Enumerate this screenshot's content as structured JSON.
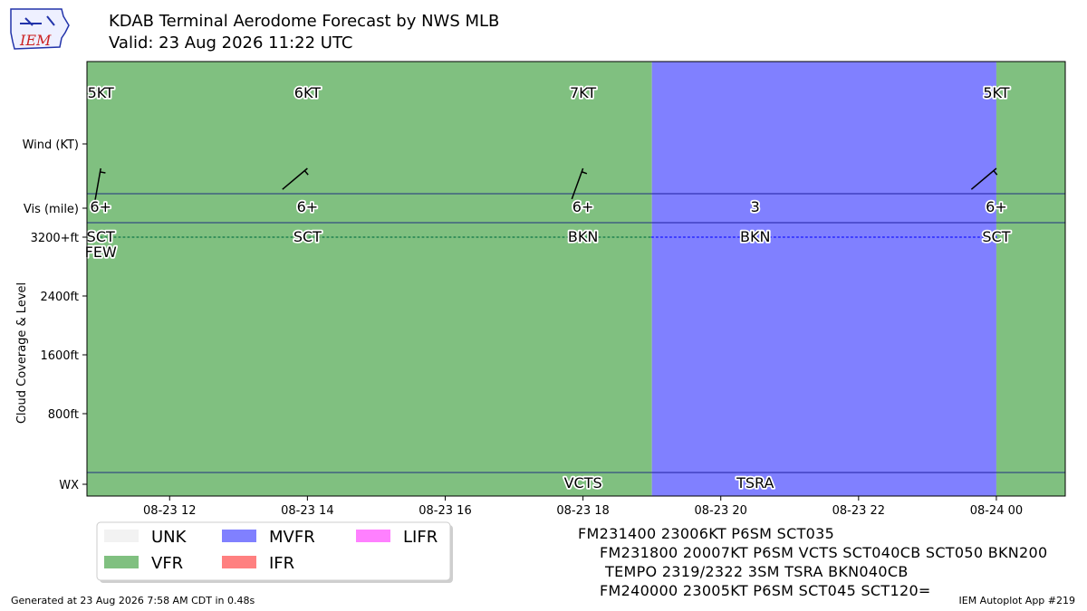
{
  "header": {
    "title_line1": "KDAB Terminal Aerodome Forecast by NWS MLB",
    "title_line2": "Valid: 23 Aug 2026 11:22 UTC",
    "logo_text": "IEM"
  },
  "footer": {
    "generated": "Generated at 23 Aug 2026 7:58 AM CDT in 0.48s",
    "app": "IEM Autoplot App #219"
  },
  "taf_text": [
    "FM231400 23006KT P6SM SCT035",
    "FM231800 20007KT P6SM VCTS SCT040CB SCT050 BKN200",
    "TEMPO 2319/2322 3SM TSRA BKN040CB",
    "FM240000 23005KT P6SM SCT045 SCT120="
  ],
  "colors": {
    "UNK": "#f2f2f2",
    "VFR": "#80c080",
    "MVFR": "#8080ff",
    "IFR": "#ff8080",
    "LIFR": "#ff80ff",
    "vfr_line": "#2e8b57",
    "mvfr_line": "#3333ff",
    "row_divider": "#000080"
  },
  "chart_data": {
    "type": "timeline",
    "x_axis": {
      "range": [
        "2026-08-23 10:48",
        "2026-08-24 01:00"
      ],
      "tick_labels": [
        {
          "t": "2026-08-23 12:00",
          "label": "08-23 12"
        },
        {
          "t": "2026-08-23 14:00",
          "label": "08-23 14"
        },
        {
          "t": "2026-08-23 16:00",
          "label": "08-23 16"
        },
        {
          "t": "2026-08-23 18:00",
          "label": "08-23 18"
        },
        {
          "t": "2026-08-23 20:00",
          "label": "08-23 20"
        },
        {
          "t": "2026-08-23 22:00",
          "label": "08-23 22"
        },
        {
          "t": "2026-08-24 00:00",
          "label": "08-24 00"
        }
      ]
    },
    "y_axis": {
      "label": "Cloud Coverage & Level",
      "row_labels": {
        "wind": "Wind (KT)",
        "vis": "Vis (mile)",
        "wx": "WX"
      },
      "level_ticks": [
        {
          "ft": 800,
          "label": "800ft"
        },
        {
          "ft": 1600,
          "label": "1600ft"
        },
        {
          "ft": 2400,
          "label": "2400ft"
        },
        {
          "ft": 3200,
          "label": "3200+ft"
        }
      ]
    },
    "category_periods": [
      {
        "start": "2026-08-23 10:48",
        "end": "2026-08-23 19:00",
        "category": "VFR"
      },
      {
        "start": "2026-08-23 19:00",
        "end": "2026-08-24 00:00",
        "category": "MVFR"
      },
      {
        "start": "2026-08-24 00:00",
        "end": "2026-08-24 01:00",
        "category": "VFR"
      }
    ],
    "forecasts": [
      {
        "t": "2026-08-23 11:00",
        "wind_dir": 190,
        "wind_kt": 5,
        "wind_label": "5KT",
        "vis": "6+",
        "clouds": [
          {
            "cover": "SCT",
            "level": 3200
          },
          {
            "cover": "FEW",
            "level": 3200
          }
        ],
        "wx": ""
      },
      {
        "t": "2026-08-23 14:00",
        "wind_dir": 230,
        "wind_kt": 6,
        "wind_label": "6KT",
        "vis": "6+",
        "clouds": [
          {
            "cover": "SCT",
            "level": 3200
          }
        ],
        "wx": ""
      },
      {
        "t": "2026-08-23 18:00",
        "wind_dir": 200,
        "wind_kt": 7,
        "wind_label": "7KT",
        "vis": "6+",
        "clouds": [
          {
            "cover": "BKN",
            "level": 3200
          }
        ],
        "wx": "VCTS"
      },
      {
        "t": "2026-08-23 20:30",
        "wind_dir": null,
        "wind_kt": null,
        "wind_label": "",
        "vis": "3",
        "clouds": [
          {
            "cover": "BKN",
            "level": 3200
          }
        ],
        "wx": "TSRA"
      },
      {
        "t": "2026-08-24 00:00",
        "wind_dir": 230,
        "wind_kt": 5,
        "wind_label": "5KT",
        "vis": "6+",
        "clouds": [
          {
            "cover": "SCT",
            "level": 3200
          }
        ],
        "wx": ""
      }
    ],
    "cloud_level_lines": [
      {
        "start": "2026-08-23 11:00",
        "end": "2026-08-23 19:00",
        "level": 3200,
        "category": "VFR"
      },
      {
        "start": "2026-08-23 19:00",
        "end": "2026-08-24 00:00",
        "level": 3200,
        "category": "MVFR"
      }
    ],
    "legend": {
      "placement": "bottom-left",
      "entries": [
        {
          "label": "UNK",
          "category": "UNK"
        },
        {
          "label": "VFR",
          "category": "VFR"
        },
        {
          "label": "MVFR",
          "category": "MVFR"
        },
        {
          "label": "IFR",
          "category": "IFR"
        },
        {
          "label": "LIFR",
          "category": "LIFR"
        }
      ]
    }
  }
}
